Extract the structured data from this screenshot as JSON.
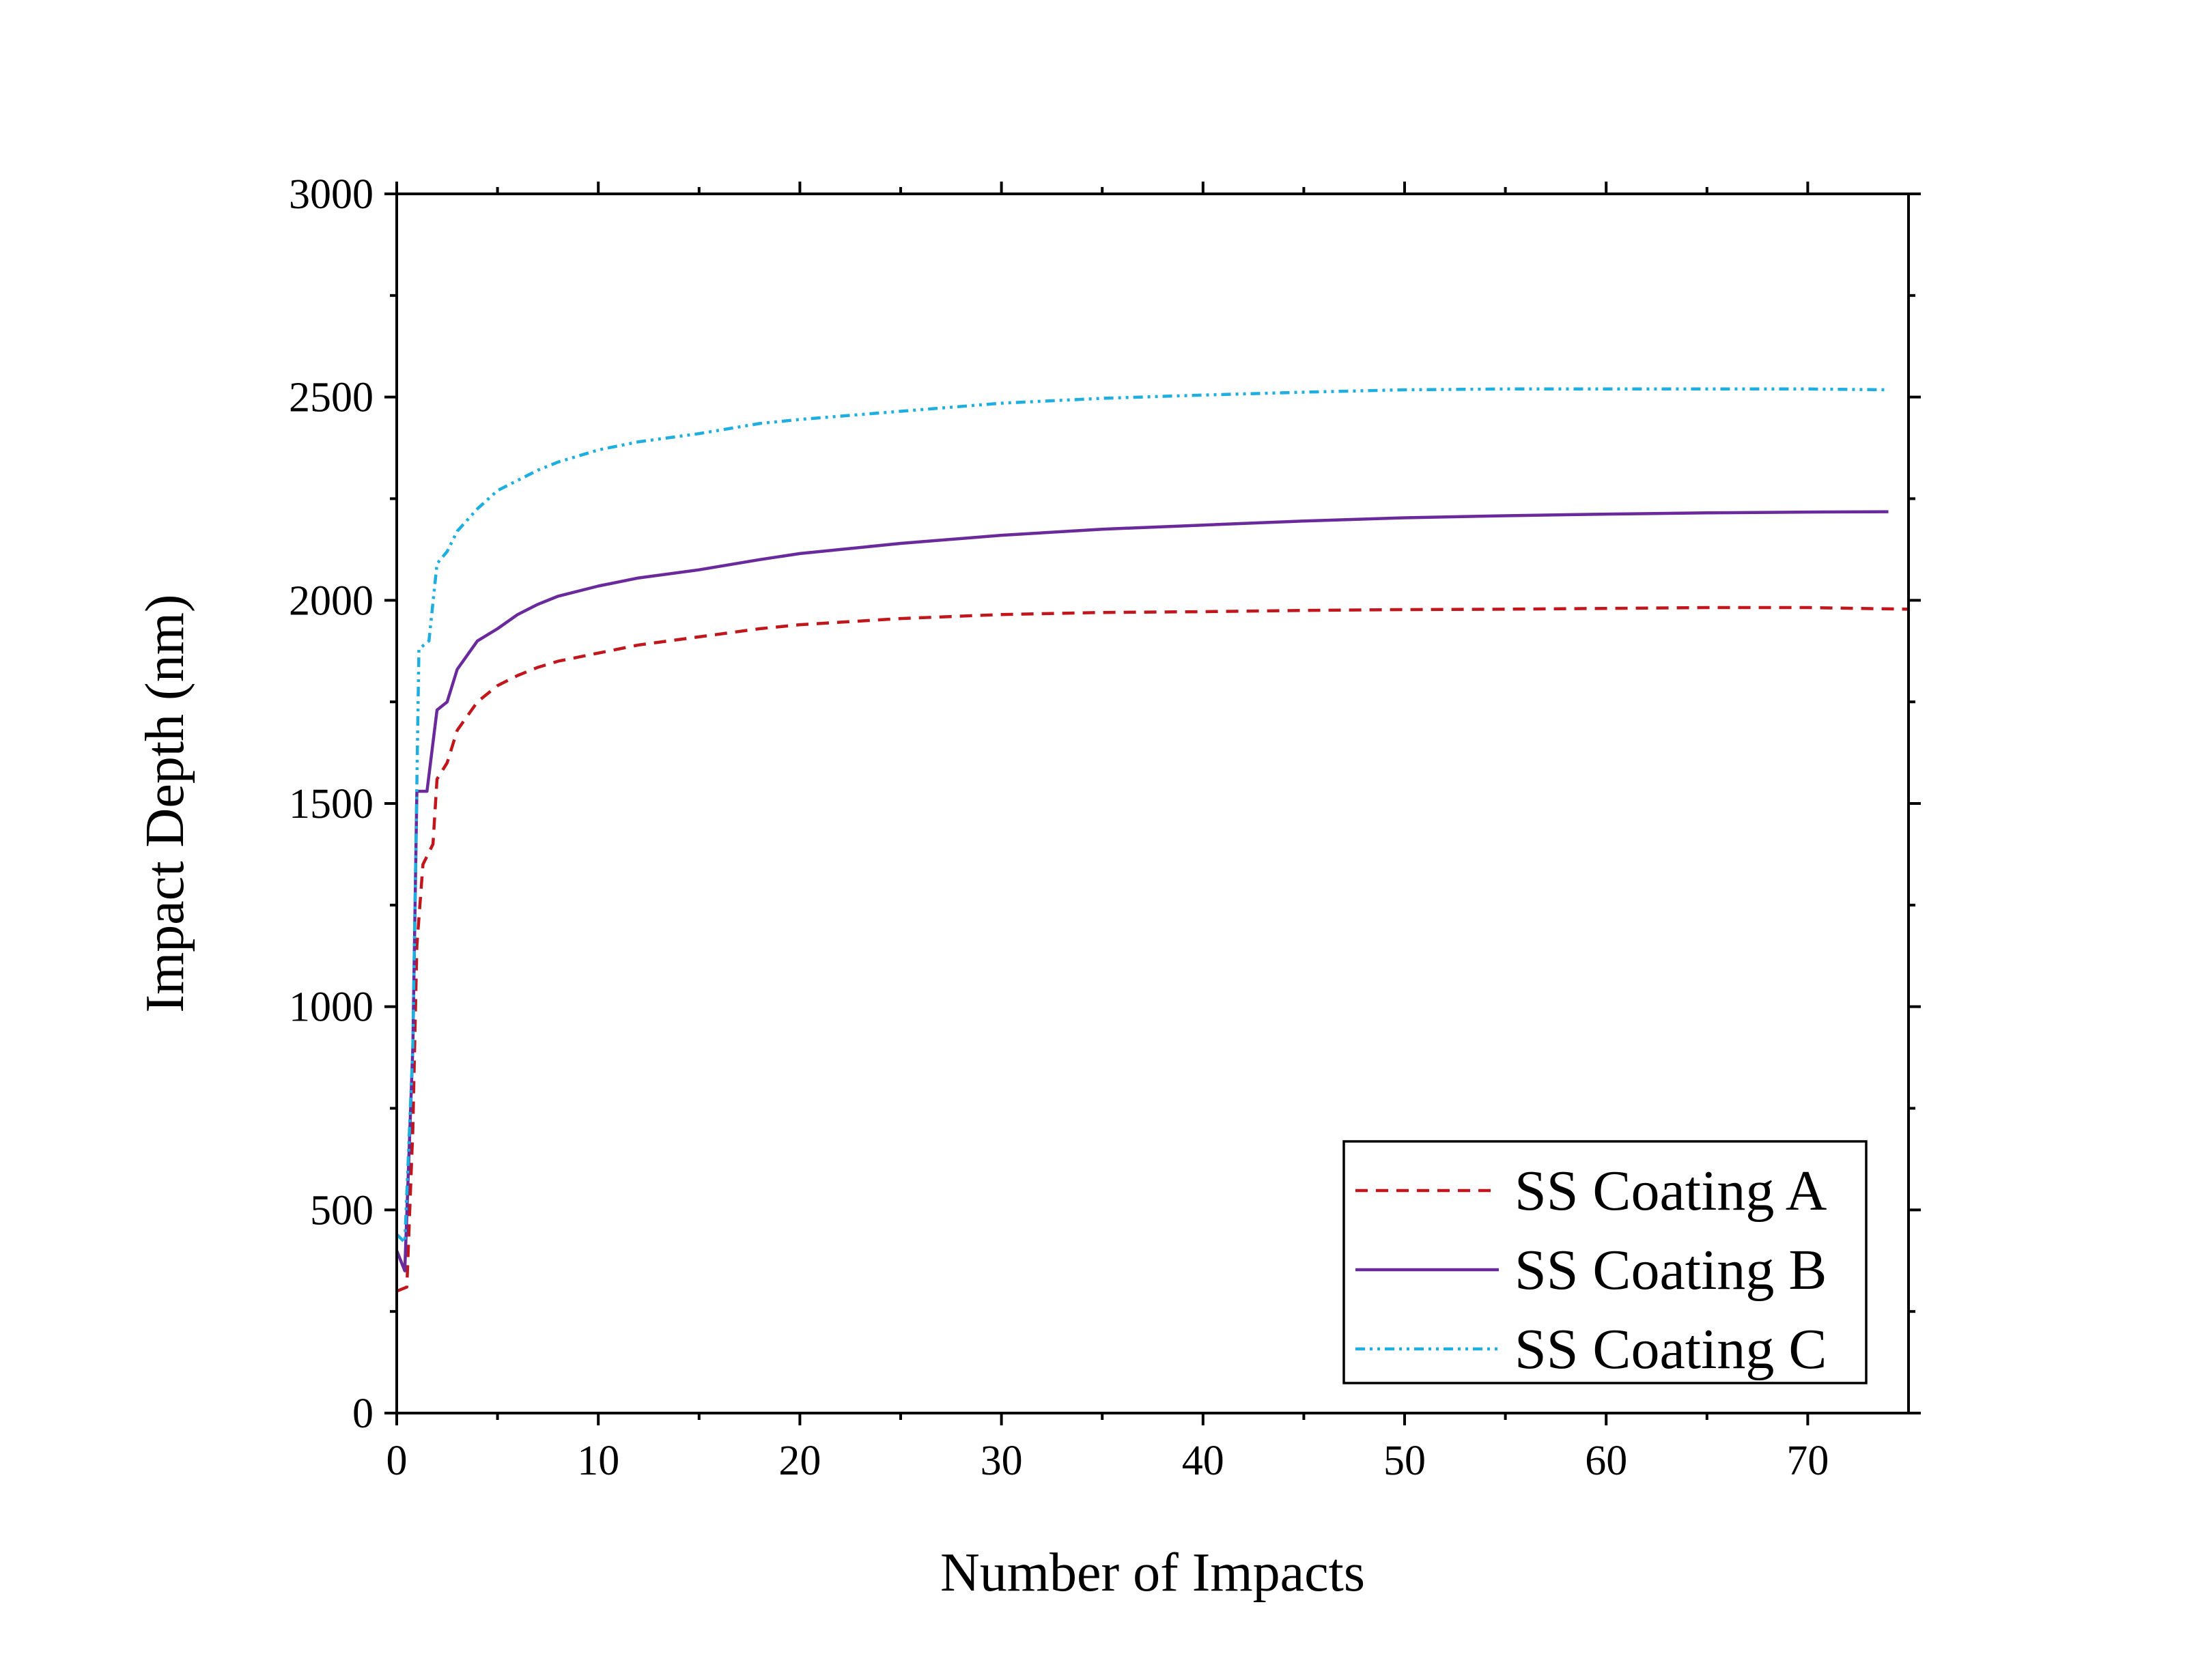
{
  "chart_data": {
    "type": "line",
    "title": "",
    "xlabel": "Number of Impacts",
    "ylabel": "Impact Depth (nm)",
    "xlim": [
      0,
      75
    ],
    "ylim": [
      0,
      3000
    ],
    "x_ticks": [
      0,
      10,
      20,
      30,
      40,
      50,
      60,
      70
    ],
    "y_ticks": [
      0,
      500,
      1000,
      1500,
      2000,
      2500,
      3000
    ],
    "grid": false,
    "legend_position": "bottom-right",
    "series": [
      {
        "name": "SS Coating A",
        "color": "#c0161c",
        "dash": "dashed",
        "points": [
          [
            0,
            300
          ],
          [
            0.5,
            310
          ],
          [
            0.8,
            700
          ],
          [
            1,
            1150
          ],
          [
            1.3,
            1350
          ],
          [
            1.8,
            1400
          ],
          [
            2,
            1560
          ],
          [
            2.5,
            1600
          ],
          [
            3,
            1680
          ],
          [
            4,
            1750
          ],
          [
            5,
            1790
          ],
          [
            6,
            1815
          ],
          [
            7,
            1835
          ],
          [
            8,
            1850
          ],
          [
            10,
            1870
          ],
          [
            12,
            1890
          ],
          [
            15,
            1910
          ],
          [
            18,
            1930
          ],
          [
            20,
            1940
          ],
          [
            25,
            1955
          ],
          [
            30,
            1965
          ],
          [
            35,
            1970
          ],
          [
            40,
            1972
          ],
          [
            45,
            1975
          ],
          [
            50,
            1977
          ],
          [
            55,
            1978
          ],
          [
            60,
            1980
          ],
          [
            65,
            1982
          ],
          [
            70,
            1982
          ],
          [
            75,
            1978
          ]
        ]
      },
      {
        "name": "SS Coating B",
        "color": "#6a2a9c",
        "dash": "solid",
        "points": [
          [
            0,
            400
          ],
          [
            0.4,
            350
          ],
          [
            0.8,
            900
          ],
          [
            1,
            1530
          ],
          [
            1.5,
            1530
          ],
          [
            2,
            1730
          ],
          [
            2.5,
            1750
          ],
          [
            3,
            1830
          ],
          [
            4,
            1900
          ],
          [
            5,
            1930
          ],
          [
            6,
            1965
          ],
          [
            7,
            1990
          ],
          [
            8,
            2010
          ],
          [
            10,
            2035
          ],
          [
            12,
            2055
          ],
          [
            15,
            2075
          ],
          [
            18,
            2100
          ],
          [
            20,
            2115
          ],
          [
            25,
            2140
          ],
          [
            30,
            2160
          ],
          [
            35,
            2175
          ],
          [
            40,
            2185
          ],
          [
            45,
            2195
          ],
          [
            50,
            2203
          ],
          [
            55,
            2208
          ],
          [
            60,
            2212
          ],
          [
            65,
            2215
          ],
          [
            70,
            2217
          ],
          [
            74,
            2218
          ]
        ]
      },
      {
        "name": "SS Coating C",
        "color": "#1eaee0",
        "dash": "dashdotdot",
        "points": [
          [
            0,
            440
          ],
          [
            0.4,
            420
          ],
          [
            0.8,
            900
          ],
          [
            1.1,
            1880
          ],
          [
            1.6,
            1900
          ],
          [
            2,
            2090
          ],
          [
            2.5,
            2120
          ],
          [
            3,
            2170
          ],
          [
            4,
            2225
          ],
          [
            5,
            2270
          ],
          [
            6,
            2295
          ],
          [
            7,
            2320
          ],
          [
            8,
            2340
          ],
          [
            10,
            2370
          ],
          [
            12,
            2390
          ],
          [
            15,
            2410
          ],
          [
            18,
            2435
          ],
          [
            20,
            2445
          ],
          [
            25,
            2465
          ],
          [
            30,
            2485
          ],
          [
            35,
            2497
          ],
          [
            40,
            2505
          ],
          [
            45,
            2512
          ],
          [
            50,
            2518
          ],
          [
            55,
            2520
          ],
          [
            60,
            2520
          ],
          [
            65,
            2520
          ],
          [
            70,
            2520
          ],
          [
            74,
            2518
          ]
        ]
      }
    ]
  }
}
